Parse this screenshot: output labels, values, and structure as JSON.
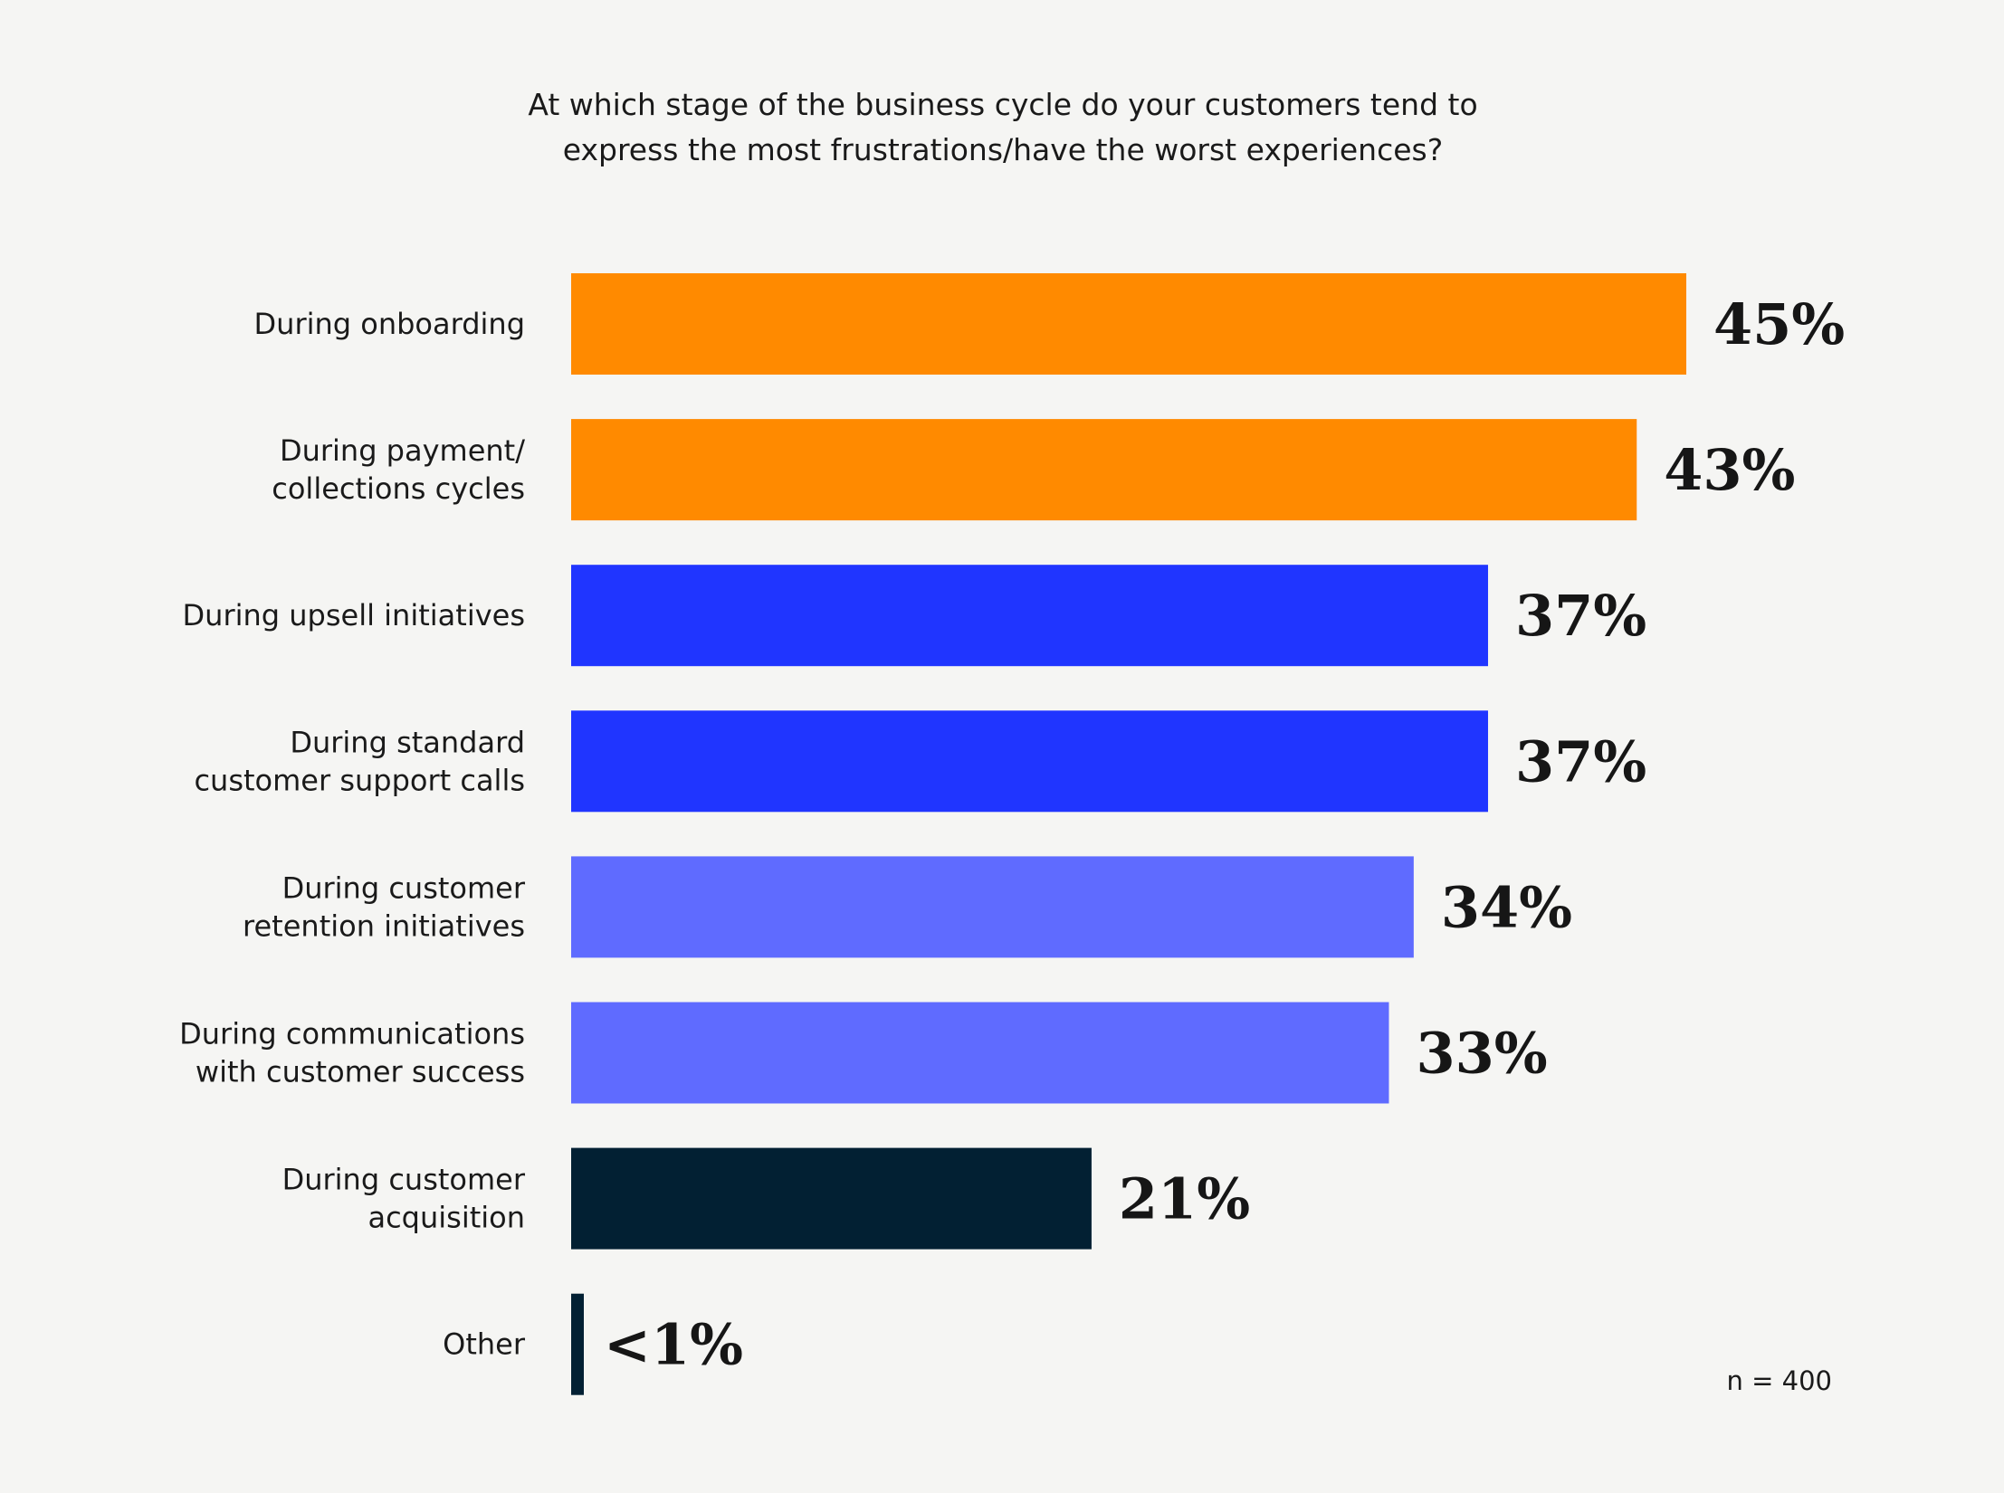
{
  "chart_data": {
    "type": "bar",
    "orientation": "horizontal",
    "title": "At which stage of the business cycle do your customers tend to express the most frustrations/have the worst experiences?",
    "title_lines": [
      "At which stage of the business cycle do your customers tend to",
      "express the most frustrations/have the worst experiences?"
    ],
    "xlabel": "",
    "ylabel": "",
    "unit": "%",
    "xlim": [
      0,
      45
    ],
    "grid": false,
    "legend": "none",
    "categories": [
      {
        "label_lines": [
          "During onboarding"
        ],
        "value": 45,
        "display": "45%",
        "color": "#FF8A00"
      },
      {
        "label_lines": [
          "During payment/",
          "collections cycles"
        ],
        "value": 43,
        "display": "43%",
        "color": "#FF8A00"
      },
      {
        "label_lines": [
          "During upsell initiatives"
        ],
        "value": 37,
        "display": "37%",
        "color": "#2035FF"
      },
      {
        "label_lines": [
          "During standard",
          "customer support calls"
        ],
        "value": 37,
        "display": "37%",
        "color": "#2035FF"
      },
      {
        "label_lines": [
          "During customer",
          "retention initiatives"
        ],
        "value": 34,
        "display": "34%",
        "color": "#5F6BFF"
      },
      {
        "label_lines": [
          "During communications",
          "with customer success"
        ],
        "value": 33,
        "display": "33%",
        "color": "#5F6BFF"
      },
      {
        "label_lines": [
          "During customer",
          "acquisition"
        ],
        "value": 21,
        "display": "21%",
        "color": "#022033"
      },
      {
        "label_lines": [
          "Other"
        ],
        "value": 0.5,
        "display": "<1%",
        "color": "#022033"
      }
    ],
    "annotations": [
      "n = 400"
    ]
  },
  "footnote": "n = 400"
}
